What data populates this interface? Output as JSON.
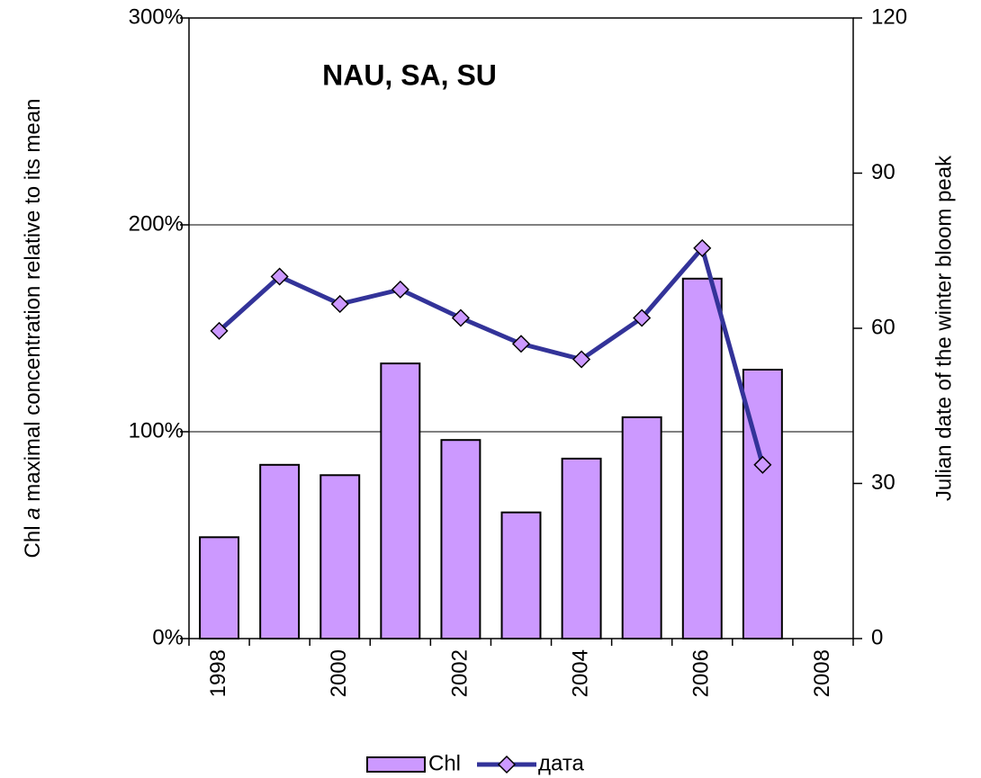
{
  "chart_data": {
    "type": "bar",
    "title": "NAU, SA, SU",
    "ylabel_parts": [
      "Chl ",
      "a",
      " maximal concentration relative to its mean"
    ],
    "y2label": "Julian date of the winter bloom peak",
    "categories": [
      "1998",
      null,
      "2000",
      null,
      "2002",
      null,
      "2004",
      null,
      "2006",
      null,
      "2008"
    ],
    "series": [
      {
        "name": "Chl",
        "type": "bar",
        "color": "#cc99ff",
        "values": [
          49,
          84,
          79,
          133,
          96,
          61,
          87,
          107,
          174,
          130,
          null
        ]
      },
      {
        "name": "дата",
        "type": "line",
        "axis": "y2",
        "color": "#333399",
        "marker_color": "#cc99ff",
        "values": [
          59.5,
          70,
          64.7,
          67.5,
          62,
          57,
          54,
          62,
          75.5,
          33.6,
          null
        ]
      }
    ],
    "ylim": [
      0,
      300
    ],
    "yticks": [
      {
        "value": 0,
        "label": "0%"
      },
      {
        "value": 100,
        "label": "100%"
      },
      {
        "value": 200,
        "label": "200%"
      },
      {
        "value": 300,
        "label": "300%"
      }
    ],
    "y2lim": [
      0,
      120
    ],
    "y2ticks": [
      0,
      30,
      60,
      90,
      120
    ],
    "grid": true,
    "legend": "bottom"
  }
}
